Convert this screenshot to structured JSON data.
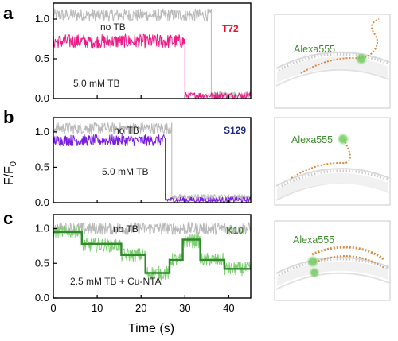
{
  "figure": {
    "y_axis_title": "F/F",
    "y_axis_title_sub": "0",
    "x_axis_title": "Time (s)",
    "x_ticks": [
      "0",
      "10",
      "20",
      "30",
      "40"
    ]
  },
  "panels": [
    {
      "letter": "a",
      "tag": "T72",
      "tag_color": "#e8112d",
      "ref_label": "no TB",
      "exp_label": "5.0 mM TB",
      "probe_label": "Alexa555",
      "y_ticks": [
        "0.0",
        "0.5",
        "1.0"
      ]
    },
    {
      "letter": "b",
      "tag": "S129",
      "tag_color": "#1c2a80",
      "ref_label": "no TB",
      "exp_label": "5.0 mM TB",
      "probe_label": "Alexa555",
      "y_ticks": [
        "0.0",
        "0.5",
        "1.0"
      ]
    },
    {
      "letter": "c",
      "tag": "K10",
      "tag_color": "#3f8a2f",
      "ref_label": "no TB",
      "exp_label": "2.5 mM TB + Cu-NTA",
      "probe_label": "Alexa555",
      "y_ticks": [
        "0.0",
        "0.5",
        "1.0"
      ]
    }
  ],
  "chart_data": [
    {
      "type": "line",
      "panel": "a",
      "xlim": [
        0,
        45
      ],
      "ylim": [
        0,
        1.2
      ],
      "series": [
        {
          "color": "#b9b9b9",
          "segments": [
            {
              "x_start": 0,
              "x_end": 36,
              "level": 1.05,
              "noise": 0.08
            },
            {
              "x_start": 36,
              "x_end": 45,
              "level": 0.05,
              "noise": 0.04
            }
          ]
        },
        {
          "color": "#ee1b86",
          "segments": [
            {
              "x_start": 0,
              "x_end": 30,
              "level": 0.72,
              "noise": 0.09
            },
            {
              "x_start": 30,
              "x_end": 45,
              "level": 0.04,
              "noise": 0.04
            }
          ]
        }
      ]
    },
    {
      "type": "line",
      "panel": "b",
      "xlim": [
        0,
        45
      ],
      "ylim": [
        0,
        1.2
      ],
      "series": [
        {
          "color": "#b9b9b9",
          "segments": [
            {
              "x_start": 0,
              "x_end": 27,
              "level": 1.05,
              "noise": 0.08
            },
            {
              "x_start": 27,
              "x_end": 45,
              "level": 0.08,
              "noise": 0.04
            }
          ]
        },
        {
          "color": "#7a1de0",
          "segments": [
            {
              "x_start": 0,
              "x_end": 25.5,
              "level": 0.88,
              "noise": 0.08
            },
            {
              "x_start": 25.5,
              "x_end": 45,
              "level": 0.04,
              "noise": 0.04
            }
          ]
        }
      ]
    },
    {
      "type": "line",
      "panel": "c",
      "xlim": [
        0,
        45
      ],
      "ylim": [
        0,
        1.2
      ],
      "series": [
        {
          "color": "#b9b9b9",
          "segments": [
            {
              "x_start": 0,
              "x_end": 45,
              "level": 1.0,
              "noise": 0.09
            }
          ]
        },
        {
          "color": "#7fcf72",
          "segments": [
            {
              "x_start": 0,
              "x_end": 6.5,
              "level": 0.95,
              "noise": 0.09
            },
            {
              "x_start": 6.5,
              "x_end": 15.5,
              "level": 0.76,
              "noise": 0.1
            },
            {
              "x_start": 15.5,
              "x_end": 21,
              "level": 0.62,
              "noise": 0.1
            },
            {
              "x_start": 21,
              "x_end": 26.5,
              "level": 0.36,
              "noise": 0.1
            },
            {
              "x_start": 26.5,
              "x_end": 29.5,
              "level": 0.55,
              "noise": 0.1
            },
            {
              "x_start": 29.5,
              "x_end": 33.5,
              "level": 0.82,
              "noise": 0.1
            },
            {
              "x_start": 33.5,
              "x_end": 39,
              "level": 0.55,
              "noise": 0.1
            },
            {
              "x_start": 39,
              "x_end": 45,
              "level": 0.42,
              "noise": 0.1
            }
          ]
        },
        {
          "color": "#2f8a2a",
          "steps": [
            {
              "x_start": 0,
              "x_end": 6.5,
              "level": 0.95
            },
            {
              "x_start": 6.5,
              "x_end": 15.5,
              "level": 0.78
            },
            {
              "x_start": 15.5,
              "x_end": 21,
              "level": 0.62
            },
            {
              "x_start": 21,
              "x_end": 26.5,
              "level": 0.36
            },
            {
              "x_start": 26.5,
              "x_end": 29.5,
              "level": 0.55
            },
            {
              "x_start": 29.5,
              "x_end": 33.5,
              "level": 0.84
            },
            {
              "x_start": 33.5,
              "x_end": 39,
              "level": 0.55
            },
            {
              "x_start": 39,
              "x_end": 45,
              "level": 0.42
            }
          ]
        }
      ]
    }
  ]
}
